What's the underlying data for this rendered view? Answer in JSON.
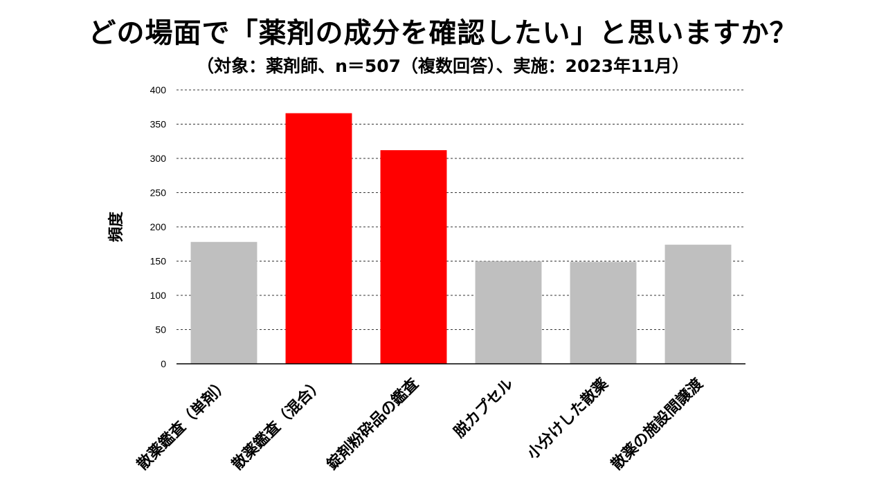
{
  "chart_data": {
    "type": "bar",
    "title": "どの場面で「薬剤の成分を確認したい」と思いますか？",
    "subtitle": "（対象：薬剤師、n＝507（複数回答）、実施：2023年11月）",
    "ylabel": "頻度",
    "xlabel": "",
    "ylim": [
      0,
      400
    ],
    "yticks": [
      0,
      50,
      100,
      150,
      200,
      250,
      300,
      350,
      400
    ],
    "grid": true,
    "categories": [
      "散薬鑑査（単剤）",
      "散薬鑑査（混合）",
      "錠剤粉砕品の鑑査",
      "脱カプセル",
      "小分けした散薬",
      "散薬の施設間譲渡"
    ],
    "values": [
      178,
      366,
      312,
      150,
      149,
      174
    ],
    "colors": [
      "#bfbfbf",
      "#ff0000",
      "#ff0000",
      "#bfbfbf",
      "#bfbfbf",
      "#bfbfbf"
    ]
  }
}
